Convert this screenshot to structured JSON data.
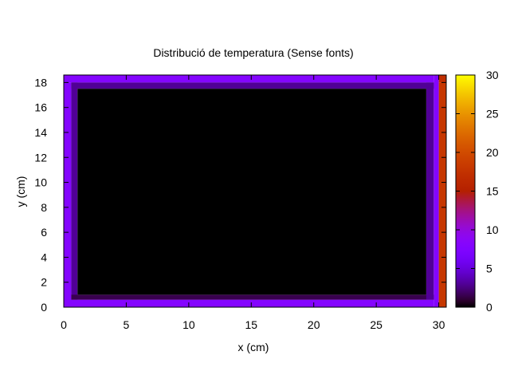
{
  "chart_data": {
    "type": "heatmap",
    "title": "Distribució de temperatura  (Sense fonts)",
    "xlabel": "x (cm)",
    "ylabel": "y (cm)",
    "xlim": [
      0,
      30.6
    ],
    "ylim": [
      0,
      18.6
    ],
    "x_ticks": [
      0,
      5,
      10,
      15,
      20,
      25,
      30
    ],
    "y_ticks": [
      0,
      2,
      4,
      6,
      8,
      10,
      12,
      14,
      16,
      18
    ],
    "colorbar": {
      "range": [
        0,
        30
      ],
      "ticks": [
        0,
        5,
        10,
        15,
        20,
        25,
        30
      ],
      "palette": "gnuplot (black-purple-red-yellow)"
    },
    "grid": false,
    "regions": [
      {
        "name": "top boundary",
        "x": [
          0,
          29.6
        ],
        "y": [
          18.0,
          18.6
        ],
        "value": 8
      },
      {
        "name": "left boundary",
        "x": [
          0,
          0.6
        ],
        "y": [
          0,
          18.0
        ],
        "value": 8
      },
      {
        "name": "bottom boundary",
        "x": [
          0,
          29.6
        ],
        "y": [
          0,
          0.6
        ],
        "value": 8
      },
      {
        "name": "right boundary",
        "x": [
          30.0,
          30.6
        ],
        "y": [
          0,
          18.0
        ],
        "value": 18
      },
      {
        "name": "top-right corner",
        "x": [
          30.0,
          30.6
        ],
        "y": [
          18.0,
          18.6
        ],
        "value": 17
      },
      {
        "name": "near right edge",
        "x": [
          29.6,
          30.0
        ],
        "y": [
          0,
          18.6
        ],
        "value": 8
      },
      {
        "name": "inner top strip",
        "x": [
          0.6,
          29.6
        ],
        "y": [
          17.5,
          18.0
        ],
        "value": 3
      },
      {
        "name": "inner left strip",
        "x": [
          0.6,
          1.1
        ],
        "y": [
          0.6,
          18.0
        ],
        "value": 3
      },
      {
        "name": "inner bottom strip",
        "x": [
          0.6,
          29.6
        ],
        "y": [
          0.6,
          1.0
        ],
        "value": 1.5
      },
      {
        "name": "inner right strip",
        "x": [
          29.0,
          29.6
        ],
        "y": [
          0.6,
          18.0
        ],
        "value": 3
      },
      {
        "name": "interior",
        "x": [
          1.1,
          29.0
        ],
        "y": [
          1.0,
          17.5
        ],
        "value": 0
      }
    ]
  }
}
